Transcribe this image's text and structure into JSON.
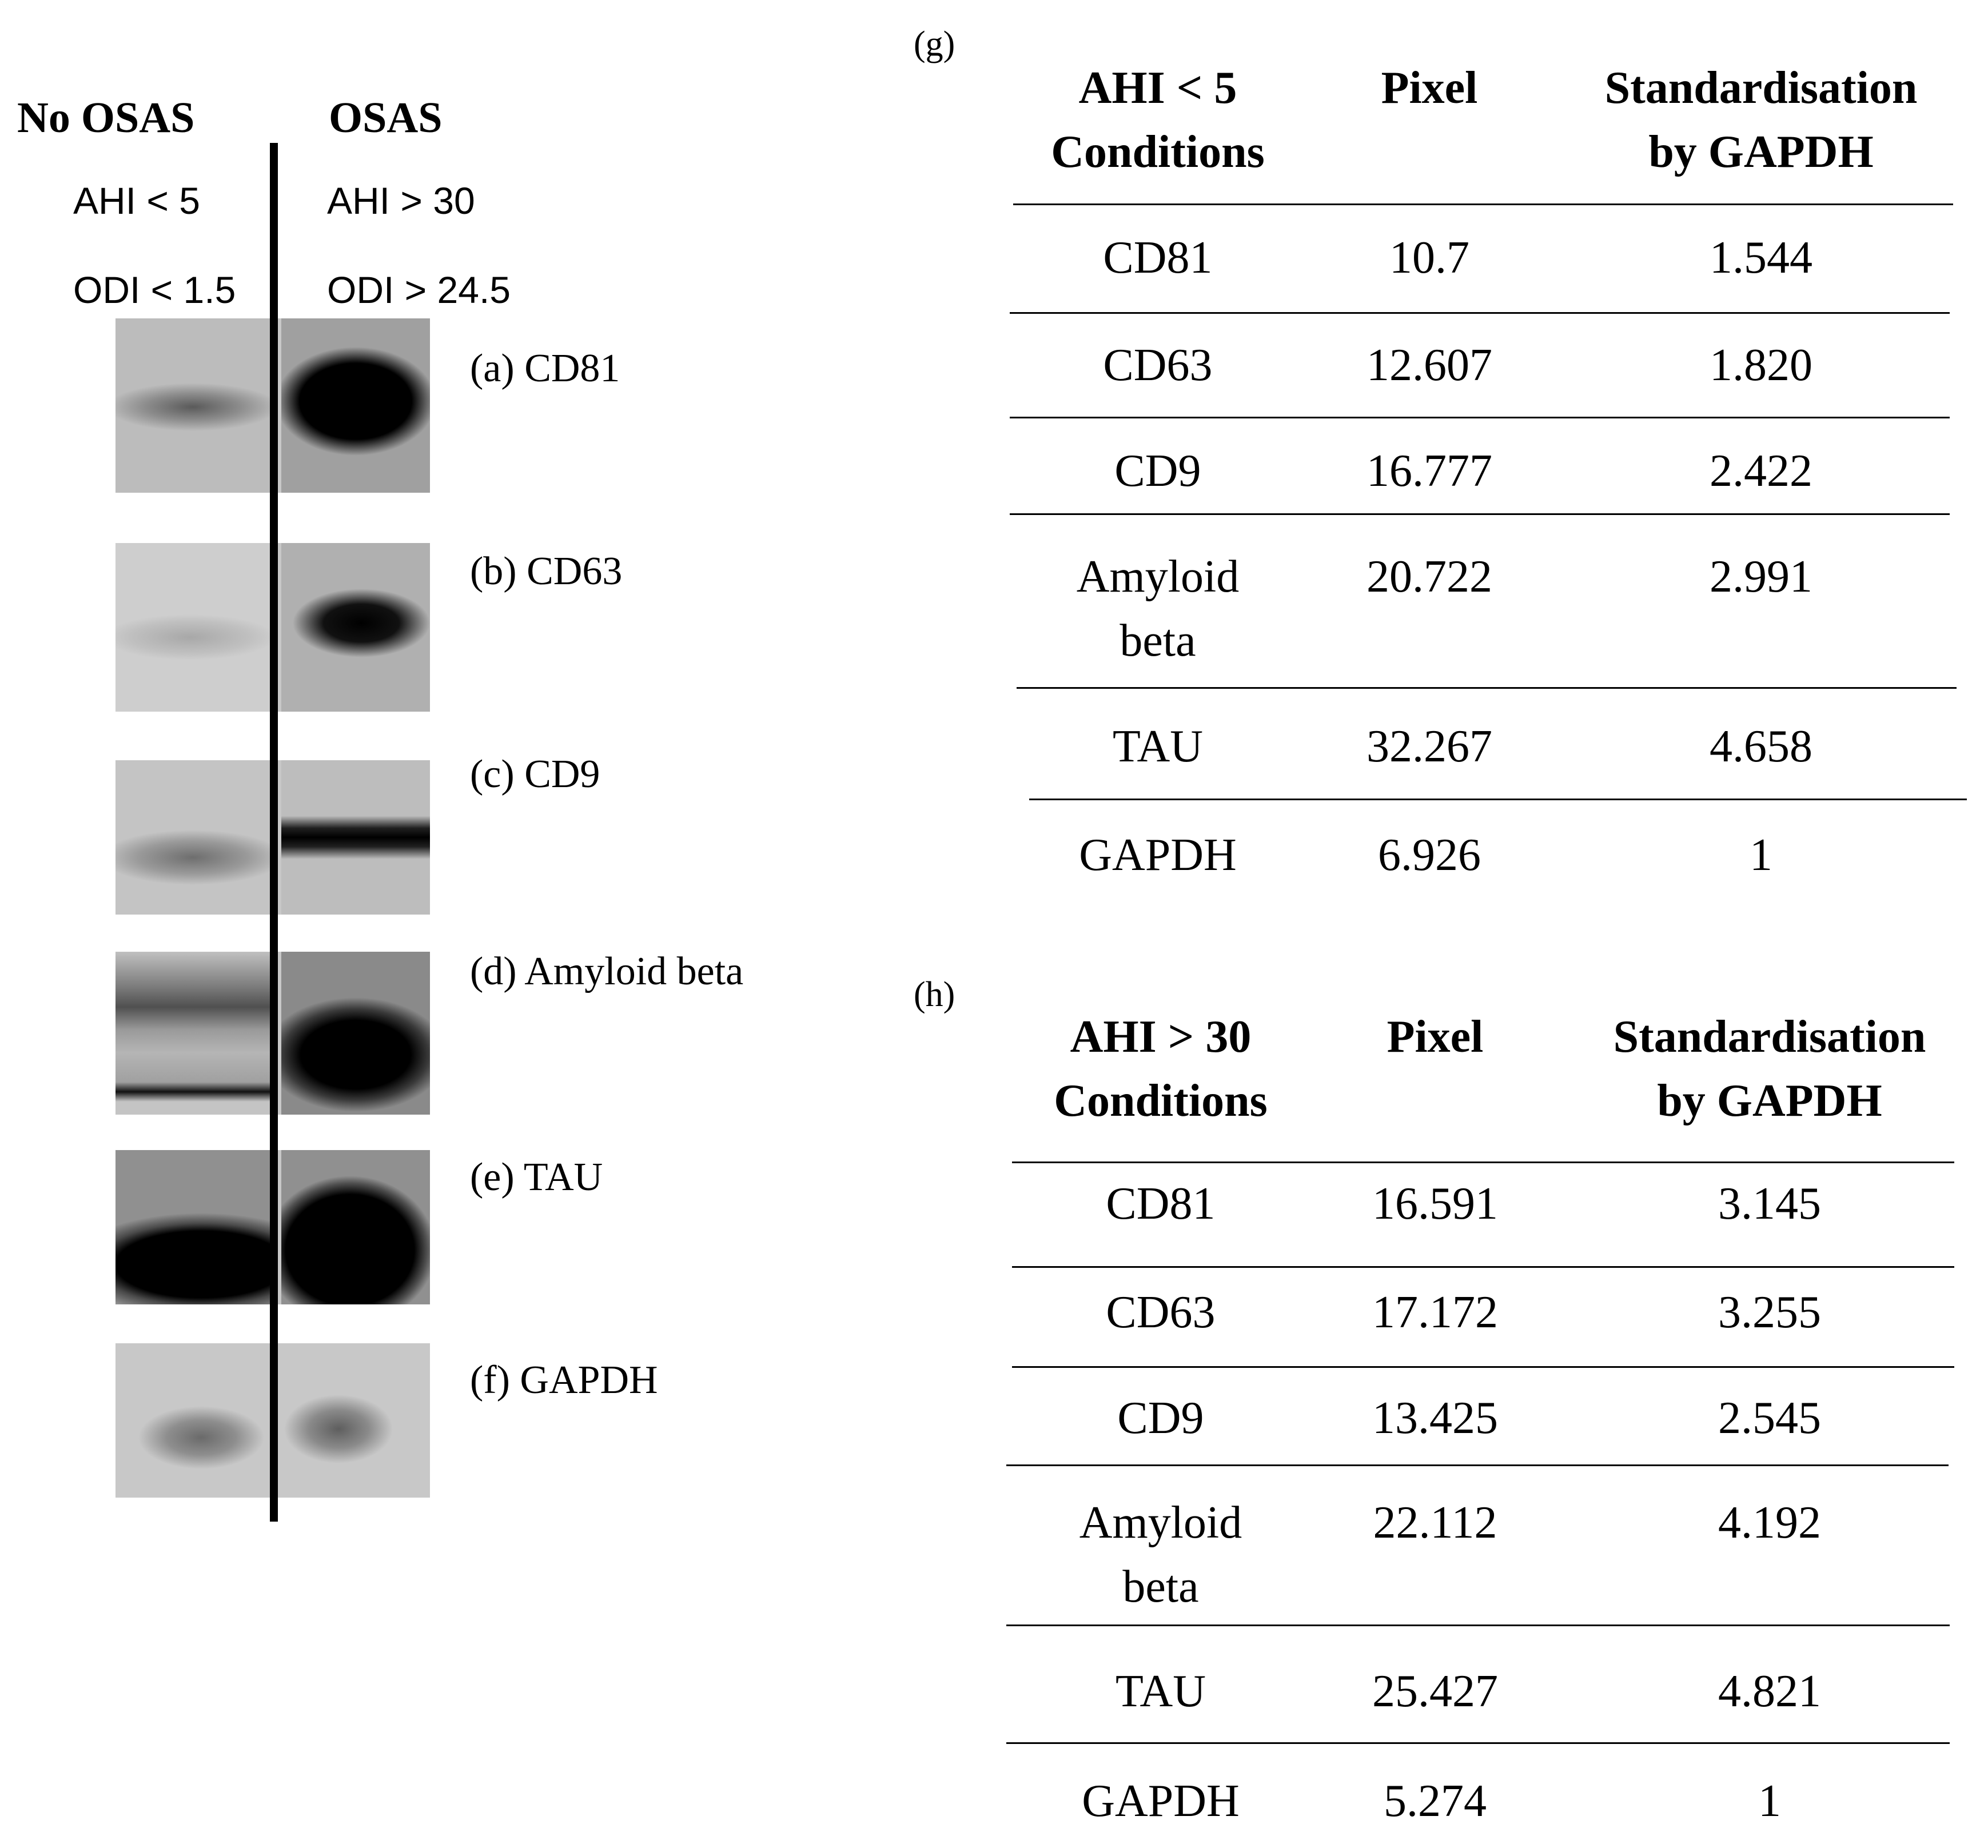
{
  "left_panel": {
    "groups": [
      {
        "title": "No OSAS",
        "ahi": "AHI < 5",
        "odi": "ODI < 1.5"
      },
      {
        "title": "OSAS",
        "ahi": "AHI > 30",
        "odi": "ODI > 24.5"
      }
    ],
    "blots": [
      {
        "label": "(a) CD81"
      },
      {
        "label": "(b) CD63"
      },
      {
        "label": "(c) CD9"
      },
      {
        "label": "(d)  Amyloid beta"
      },
      {
        "label": "(e) TAU"
      },
      {
        "label": "(f) GAPDH"
      }
    ]
  },
  "table_g": {
    "panel": "(g)",
    "headers": {
      "col1_line1": "AHI < 5",
      "col1_line2": "Conditions",
      "col2": "Pixel",
      "col3_line1": "Standardisation",
      "col3_line2": "by GAPDH"
    },
    "rows": [
      {
        "condition": "CD81",
        "pixel": "10.7",
        "std": "1.544"
      },
      {
        "condition": "CD63",
        "pixel": "12.607",
        "std": "1.820"
      },
      {
        "condition": "CD9",
        "pixel": "16.777",
        "std": "2.422"
      },
      {
        "condition_line1": "Amyloid",
        "condition_line2": "beta",
        "pixel": "20.722",
        "std": "2.991"
      },
      {
        "condition": "TAU",
        "pixel": "32.267",
        "std": "4.658"
      },
      {
        "condition": "GAPDH",
        "pixel": "6.926",
        "std": "1"
      }
    ]
  },
  "table_h": {
    "panel": "(h)",
    "headers": {
      "col1_line1": "AHI > 30",
      "col1_line2": "Conditions",
      "col2": "Pixel",
      "col3_line1": "Standardisation",
      "col3_line2": "by GAPDH"
    },
    "rows": [
      {
        "condition": "CD81",
        "pixel": "16.591",
        "std": "3.145"
      },
      {
        "condition": "CD63",
        "pixel": "17.172",
        "std": "3.255"
      },
      {
        "condition": "CD9",
        "pixel": "13.425",
        "std": "2.545"
      },
      {
        "condition_line1": "Amyloid",
        "condition_line2": "beta",
        "pixel": "22.112",
        "std": "4.192"
      },
      {
        "condition": "TAU",
        "pixel": "25.427",
        "std": "4.821"
      },
      {
        "condition": "GAPDH",
        "pixel": "5.274",
        "std": "1"
      }
    ]
  }
}
